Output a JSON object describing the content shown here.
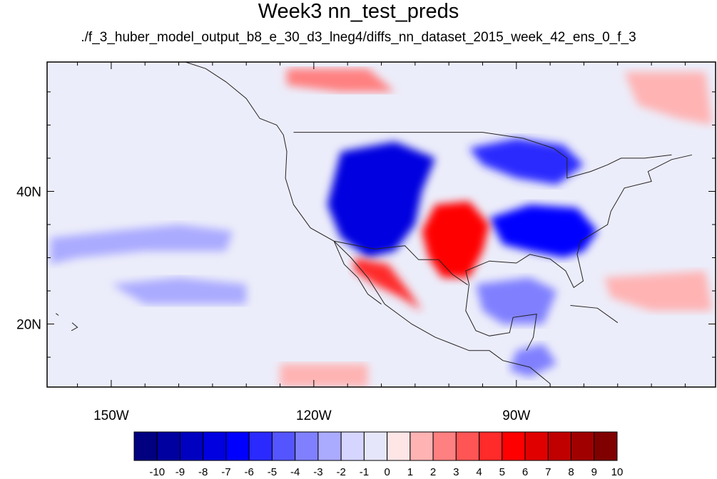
{
  "title": "Week3 nn_test_preds",
  "subtitle": "./f_3_huber_model_output_b8_e_30_d3_lneg4/diffs_nn_dataset_2015_week_42_ens_0_f_3",
  "map": {
    "projection": "cylindrical-equidistant",
    "lon_range": [
      -159.5,
      -60.5
    ],
    "lat_range": [
      10.5,
      59.5
    ],
    "x_ticks": [
      {
        "value": -150,
        "label": "150W"
      },
      {
        "value": -120,
        "label": "120W"
      },
      {
        "value": -90,
        "label": "90W"
      }
    ],
    "y_ticks": [
      {
        "value": 40,
        "label": "40N"
      },
      {
        "value": 20,
        "label": "20N"
      }
    ],
    "features": [
      {
        "name": "strong-negative-west-us",
        "value": -7,
        "shape": [
          [
            -116,
            46
          ],
          [
            -108,
            47.5
          ],
          [
            -102,
            45
          ],
          [
            -104,
            40
          ],
          [
            -105,
            35
          ],
          [
            -108,
            31
          ],
          [
            -112,
            30
          ],
          [
            -116,
            33
          ],
          [
            -118,
            38
          ]
        ]
      },
      {
        "name": "strong-negative-southeast-us",
        "value": -6,
        "shape": [
          [
            -94,
            36
          ],
          [
            -88,
            38
          ],
          [
            -81,
            37.5
          ],
          [
            -78,
            34
          ],
          [
            -80,
            31
          ],
          [
            -83,
            30
          ],
          [
            -88,
            31
          ],
          [
            -92,
            32
          ]
        ]
      },
      {
        "name": "negative-great-lakes",
        "value": -5,
        "shape": [
          [
            -97,
            46.5
          ],
          [
            -90,
            48
          ],
          [
            -83,
            47
          ],
          [
            -80,
            44
          ],
          [
            -84,
            41
          ],
          [
            -90,
            42
          ],
          [
            -95,
            44
          ]
        ]
      },
      {
        "name": "strong-positive-southern-plains",
        "value": 6,
        "shape": [
          [
            -102,
            38
          ],
          [
            -97,
            38.5
          ],
          [
            -94,
            35
          ],
          [
            -95,
            31
          ],
          [
            -97,
            27
          ],
          [
            -101,
            27
          ],
          [
            -103,
            30
          ],
          [
            -104,
            34
          ]
        ]
      },
      {
        "name": "positive-baja-mexico",
        "value": 5,
        "shape": [
          [
            -114,
            30
          ],
          [
            -109,
            29
          ],
          [
            -106,
            25
          ],
          [
            -104,
            22
          ],
          [
            -107,
            24
          ],
          [
            -111,
            26
          ],
          [
            -114,
            28
          ]
        ]
      },
      {
        "name": "positive-north-canada",
        "value": 3,
        "shape": [
          [
            -124,
            58.5
          ],
          [
            -112,
            58.5
          ],
          [
            -108,
            55
          ],
          [
            -116,
            55
          ],
          [
            -124,
            56
          ]
        ]
      },
      {
        "name": "positive-east-canada",
        "value": 2,
        "shape": [
          [
            -74,
            58
          ],
          [
            -62,
            58
          ],
          [
            -61,
            50
          ],
          [
            -66,
            51
          ],
          [
            -72,
            53
          ]
        ]
      },
      {
        "name": "positive-atlantic",
        "value": 2,
        "shape": [
          [
            -77,
            27
          ],
          [
            -62,
            28
          ],
          [
            -61,
            22
          ],
          [
            -70,
            22
          ],
          [
            -76,
            24
          ]
        ]
      },
      {
        "name": "positive-east-pacific",
        "value": 2,
        "shape": [
          [
            -125,
            14
          ],
          [
            -112,
            14
          ],
          [
            -112,
            10.5
          ],
          [
            -125,
            10.5
          ]
        ]
      },
      {
        "name": "negative-central-pacific-band",
        "value": -2,
        "shape": [
          [
            -159,
            33
          ],
          [
            -150,
            34
          ],
          [
            -140,
            35
          ],
          [
            -132,
            34
          ],
          [
            -133,
            31
          ],
          [
            -145,
            31
          ],
          [
            -155,
            30
          ],
          [
            -159,
            29
          ]
        ]
      },
      {
        "name": "negative-pacific-south",
        "value": -2,
        "shape": [
          [
            -150,
            26
          ],
          [
            -140,
            27
          ],
          [
            -130,
            26
          ],
          [
            -130,
            23
          ],
          [
            -145,
            23
          ]
        ]
      },
      {
        "name": "negative-gulf",
        "value": -3,
        "shape": [
          [
            -96,
            26
          ],
          [
            -88,
            27
          ],
          [
            -84,
            25
          ],
          [
            -86,
            20
          ],
          [
            -92,
            20
          ],
          [
            -95,
            22
          ]
        ]
      },
      {
        "name": "negative-caribbean",
        "value": -3,
        "shape": [
          [
            -90,
            16
          ],
          [
            -86,
            17
          ],
          [
            -84,
            14
          ],
          [
            -88,
            12
          ],
          [
            -91,
            13
          ]
        ]
      }
    ]
  },
  "colorbar": {
    "levels": [
      -10,
      -9,
      -8,
      -7,
      -6,
      -5,
      -4,
      -3,
      -2,
      -1,
      0,
      1,
      2,
      3,
      4,
      5,
      6,
      7,
      8,
      9,
      10
    ],
    "labels": [
      "-10",
      "-9",
      "-8",
      "-7",
      "-6",
      "-5",
      "-4",
      "-3",
      "-2",
      "-1",
      "0",
      "1",
      "2",
      "3",
      "4",
      "5",
      "6",
      "7",
      "8",
      "9",
      "10"
    ],
    "colors": [
      "#000080",
      "#0000a0",
      "#0000c0",
      "#0000e0",
      "#0000ff",
      "#2a2aff",
      "#5555ff",
      "#8080ff",
      "#aaaaff",
      "#d5d5ff",
      "#e6e6fa",
      "#ffe6e6",
      "#ffb3b3",
      "#ff8080",
      "#ff5555",
      "#ff2a2a",
      "#ff0000",
      "#e00000",
      "#c00000",
      "#a00000",
      "#800000"
    ]
  }
}
